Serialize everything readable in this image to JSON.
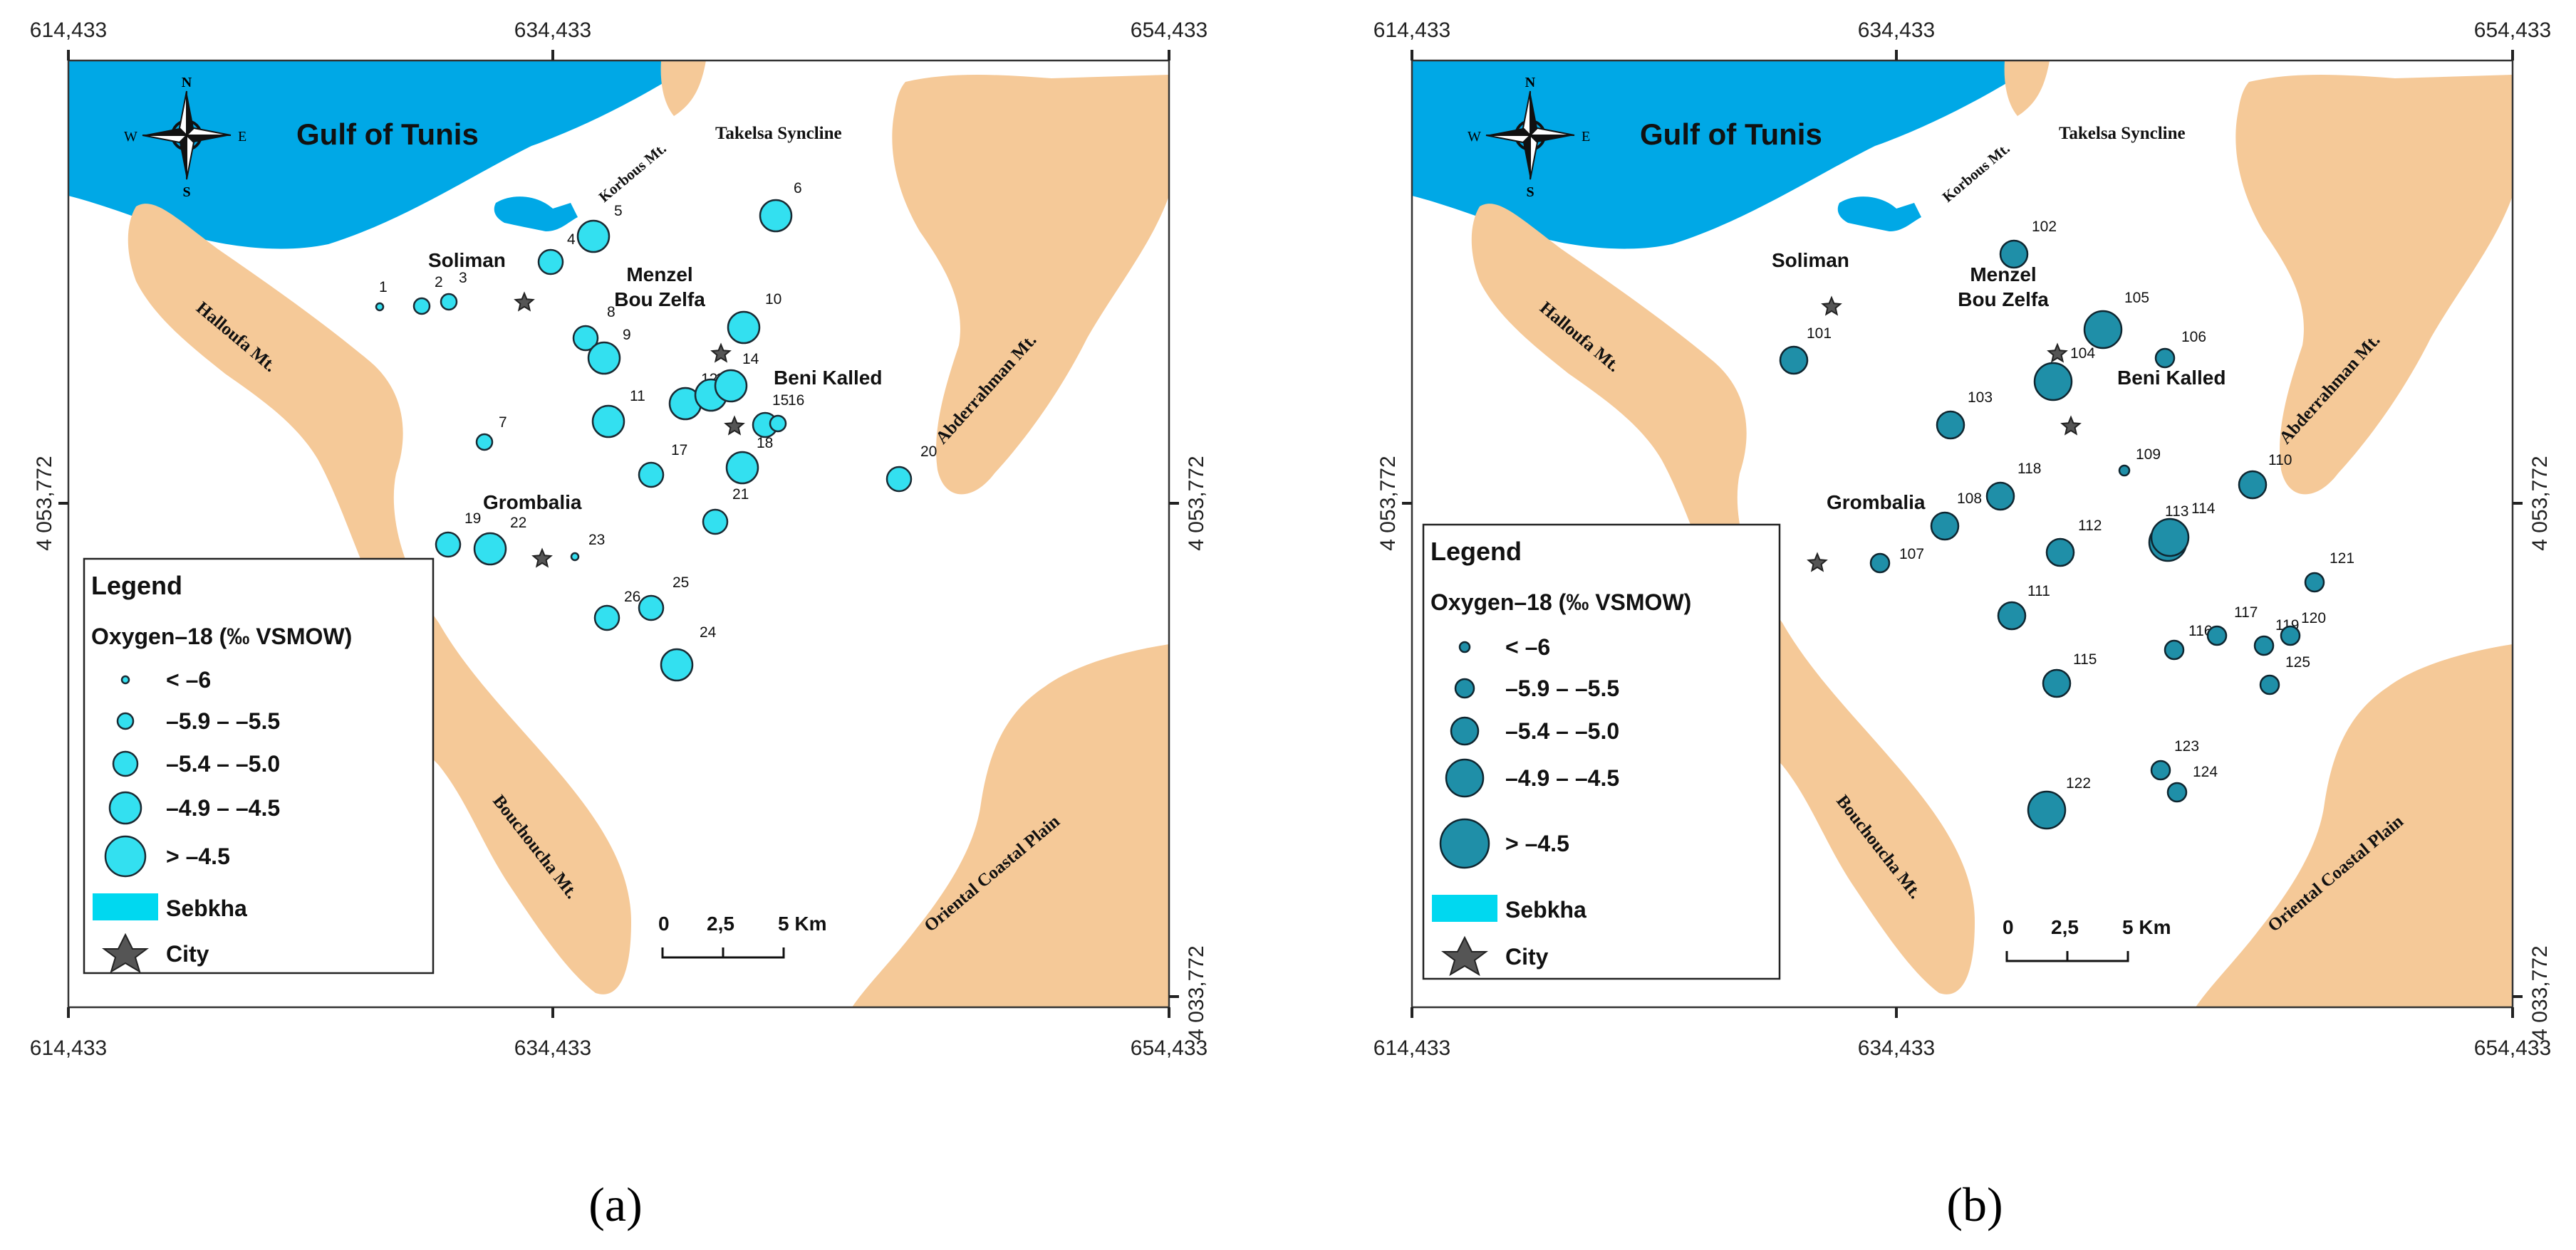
{
  "coords": {
    "x_left": "614,433",
    "x_mid": "634,433",
    "x_right": "654,433",
    "y_mid": "4 053,772",
    "y_bottom": "4 033,772"
  },
  "places": {
    "gulf": "Gulf of Tunis",
    "korbous": "Korbous Mt.",
    "takelsa": "Takelsa Syncline",
    "soliman": "Soliman",
    "menzel_1": "Menzel",
    "menzel_2": "Bou Zelfa",
    "beni_kalled": "Beni Kalled",
    "grombalia": "Grombalia",
    "halloufa": "Halloufa Mt.",
    "abderrahman": "Abderrahman Mt.",
    "bouchoucha": "Bouchoucha Mt.",
    "oriental": "Oriental Coastal Plain"
  },
  "compass": {
    "n": "N",
    "s": "S",
    "e": "E",
    "w": "W"
  },
  "legend": {
    "title": "Legend",
    "variable": "Oxygen–18 (‰ VSMOW)",
    "classes": [
      "< –6",
      "–5.9 – –5.5",
      "–5.4 – –5.0",
      "–4.9 – –4.5",
      "> –4.5"
    ],
    "sebkha": "Sebkha",
    "city": "City"
  },
  "scale": {
    "t0": "0",
    "t1": "2,5",
    "t2": "5 Km"
  },
  "captions": {
    "a": "(a)",
    "b": "(b)"
  },
  "colors": {
    "panel_a_points": "#33e0f0",
    "panel_b_points": "#1f8fa8",
    "sea": "#00a8e6",
    "mountains": "#f5c998"
  },
  "samples_a": [
    {
      "id": "1",
      "cls": 0
    },
    {
      "id": "2",
      "cls": 1
    },
    {
      "id": "3",
      "cls": 1
    },
    {
      "id": "4",
      "cls": 2
    },
    {
      "id": "5",
      "cls": 3
    },
    {
      "id": "6",
      "cls": 3
    },
    {
      "id": "7",
      "cls": 1
    },
    {
      "id": "8",
      "cls": 2
    },
    {
      "id": "9",
      "cls": 3
    },
    {
      "id": "10",
      "cls": 3
    },
    {
      "id": "11",
      "cls": 3
    },
    {
      "id": "12",
      "cls": 3
    },
    {
      "id": "13",
      "cls": 3
    },
    {
      "id": "14",
      "cls": 3
    },
    {
      "id": "15",
      "cls": 2
    },
    {
      "id": "16",
      "cls": 1
    },
    {
      "id": "17",
      "cls": 2
    },
    {
      "id": "18",
      "cls": 3
    },
    {
      "id": "19",
      "cls": 2
    },
    {
      "id": "20",
      "cls": 2
    },
    {
      "id": "21",
      "cls": 2
    },
    {
      "id": "22",
      "cls": 3
    },
    {
      "id": "23",
      "cls": 0
    },
    {
      "id": "24",
      "cls": 3
    },
    {
      "id": "25",
      "cls": 2
    },
    {
      "id": "26",
      "cls": 2
    }
  ],
  "samples_b": [
    {
      "id": "101",
      "cls": 2
    },
    {
      "id": "102",
      "cls": 2
    },
    {
      "id": "103",
      "cls": 2
    },
    {
      "id": "104",
      "cls": 3
    },
    {
      "id": "105",
      "cls": 3
    },
    {
      "id": "106",
      "cls": 1
    },
    {
      "id": "107",
      "cls": 1
    },
    {
      "id": "108",
      "cls": 2
    },
    {
      "id": "109",
      "cls": 0
    },
    {
      "id": "110",
      "cls": 2
    },
    {
      "id": "111",
      "cls": 2
    },
    {
      "id": "112",
      "cls": 2
    },
    {
      "id": "113",
      "cls": 3
    },
    {
      "id": "114",
      "cls": 3
    },
    {
      "id": "115",
      "cls": 2
    },
    {
      "id": "116",
      "cls": 1
    },
    {
      "id": "117",
      "cls": 1
    },
    {
      "id": "118",
      "cls": 2
    },
    {
      "id": "119",
      "cls": 1
    },
    {
      "id": "120",
      "cls": 1
    },
    {
      "id": "121",
      "cls": 1
    },
    {
      "id": "122",
      "cls": 3
    },
    {
      "id": "123",
      "cls": 1
    },
    {
      "id": "124",
      "cls": 1
    },
    {
      "id": "125",
      "cls": 1
    }
  ]
}
